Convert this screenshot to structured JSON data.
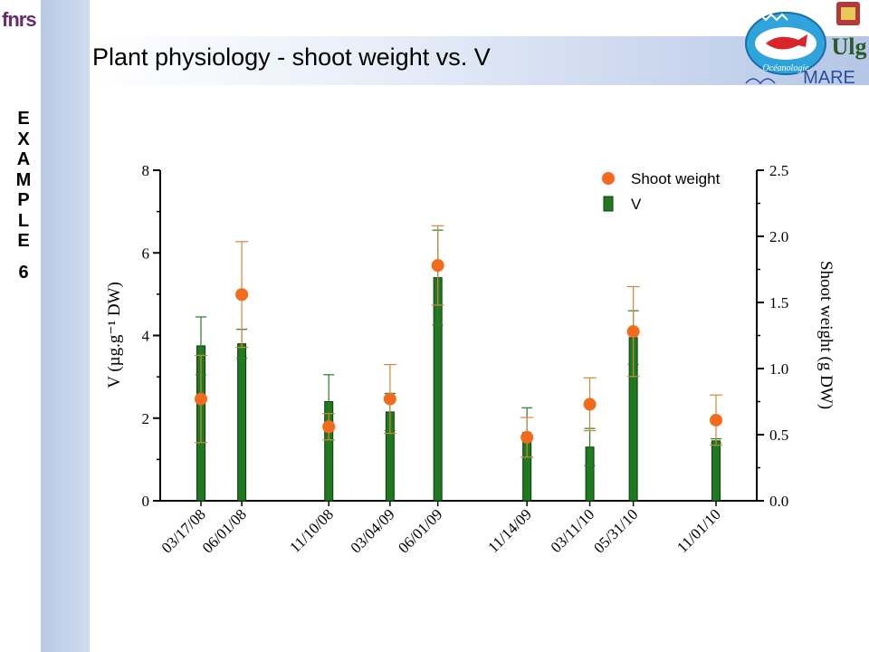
{
  "page": {
    "title": "Plant physiology - shoot weight vs. V",
    "example_letters": [
      "E",
      "X",
      "A",
      "M",
      "P",
      "L",
      "E"
    ],
    "example_number": "6",
    "logo_fnrs": "fnrs",
    "logo_ulg": "Ulg",
    "logo_mare": "MARE",
    "logo_oceanologie": "Océanologie"
  },
  "chart_data": {
    "type": "bar",
    "categories": [
      "03/17/08",
      "06/01/08",
      "11/10/08",
      "03/04/09",
      "06/01/09",
      "11/14/09",
      "03/11/10",
      "05/31/10",
      "11/01/10"
    ],
    "x_days": [
      0,
      76,
      238,
      352,
      441,
      607,
      724,
      805,
      959
    ],
    "series": [
      {
        "name": "V",
        "type": "bar",
        "axis": "left",
        "color": "#1f7a1f",
        "values": [
          3.75,
          3.8,
          2.4,
          2.15,
          5.4,
          1.65,
          1.3,
          3.95,
          1.45
        ],
        "errors": [
          0.7,
          0.35,
          0.65,
          0.45,
          1.15,
          0.6,
          0.45,
          0.65,
          0.05
        ]
      },
      {
        "name": "Shoot weight",
        "type": "scatter",
        "axis": "right",
        "color": "#f26a1b",
        "error_color": "#c98a3b",
        "values": [
          0.77,
          1.56,
          0.56,
          0.77,
          1.78,
          0.48,
          0.73,
          1.28,
          0.61
        ],
        "errors": [
          0.33,
          0.4,
          0.1,
          0.26,
          0.3,
          0.15,
          0.2,
          0.34,
          0.19
        ]
      }
    ],
    "ylabel_left": "V (µg.g⁻¹ DW)",
    "ylabel_right": "Shoot weight (g DW)",
    "ylim_left": [
      0,
      8
    ],
    "ylim_right": [
      0,
      2.5
    ],
    "yticks_left": [
      "0",
      "2",
      "4",
      "6",
      "8"
    ],
    "yticks_right": [
      "0.0",
      "0.5",
      "1.0",
      "1.5",
      "2.0",
      "2.5"
    ],
    "legend": [
      {
        "label": "Shoot weight",
        "marker": "circle",
        "color": "#f26a1b"
      },
      {
        "label": "V",
        "marker": "bar",
        "color": "#1f7a1f"
      }
    ],
    "legend_position": "top-right",
    "grid": false
  }
}
